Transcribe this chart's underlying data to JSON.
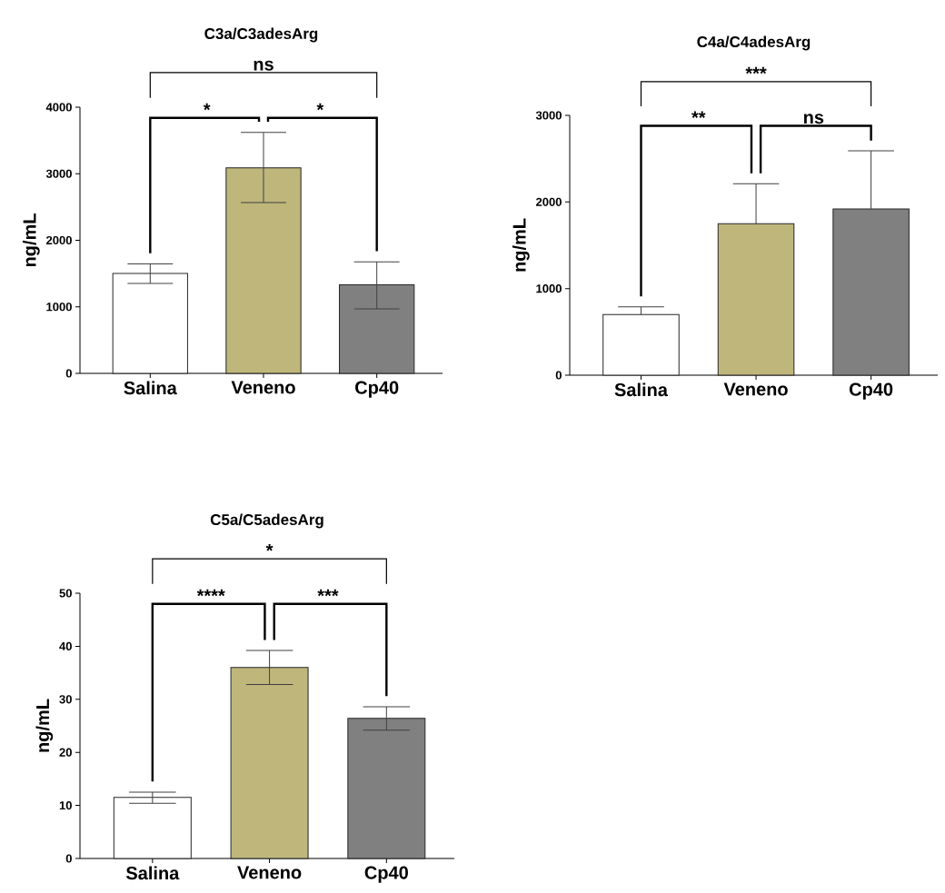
{
  "chart_data": [
    {
      "type": "bar",
      "title": "C3a/C3adesArg",
      "ylabel": "ng/mL",
      "categories": [
        "Salina",
        "Veneno",
        "Cp40"
      ],
      "values": [
        1500,
        3090,
        1330
      ],
      "colors": [
        "#ffffff",
        "#bfb67c",
        "#808080"
      ],
      "errors": [
        [
          1350,
          1645
        ],
        [
          2565,
          3620
        ],
        [
          970,
          1675
        ]
      ],
      "ylim": [
        0,
        4000
      ],
      "yticks": [
        0,
        1000,
        2000,
        3000,
        4000
      ],
      "annotations": [
        "ns",
        "*",
        "*"
      ]
    },
    {
      "type": "bar",
      "title": "C4a/C4adesArg",
      "ylabel": "ng/mL",
      "categories": [
        "Salina",
        "Veneno",
        "Cp40"
      ],
      "values": [
        700,
        1750,
        1920
      ],
      "colors": [
        "#ffffff",
        "#bfb67c",
        "#808080"
      ],
      "errors": [
        [
          700,
          790
        ],
        [
          1750,
          2210
        ],
        [
          1920,
          2590
        ]
      ],
      "ylim": [
        0,
        3000
      ],
      "yticks": [
        0,
        1000,
        2000,
        3000
      ],
      "annotations": [
        "***",
        "**",
        "ns"
      ]
    },
    {
      "type": "bar",
      "title": "C5a/C5adesArg",
      "ylabel": "ng/mL",
      "categories": [
        "Salina",
        "Veneno",
        "Cp40"
      ],
      "values": [
        11.5,
        36.0,
        26.4
      ],
      "colors": [
        "#ffffff",
        "#bfb67c",
        "#808080"
      ],
      "errors": [
        [
          10.4,
          12.5
        ],
        [
          32.8,
          39.2
        ],
        [
          24.2,
          28.6
        ]
      ],
      "ylim": [
        0,
        50
      ],
      "yticks": [
        0,
        10,
        20,
        30,
        40,
        50
      ],
      "annotations": [
        "*",
        "****",
        "***"
      ]
    }
  ]
}
